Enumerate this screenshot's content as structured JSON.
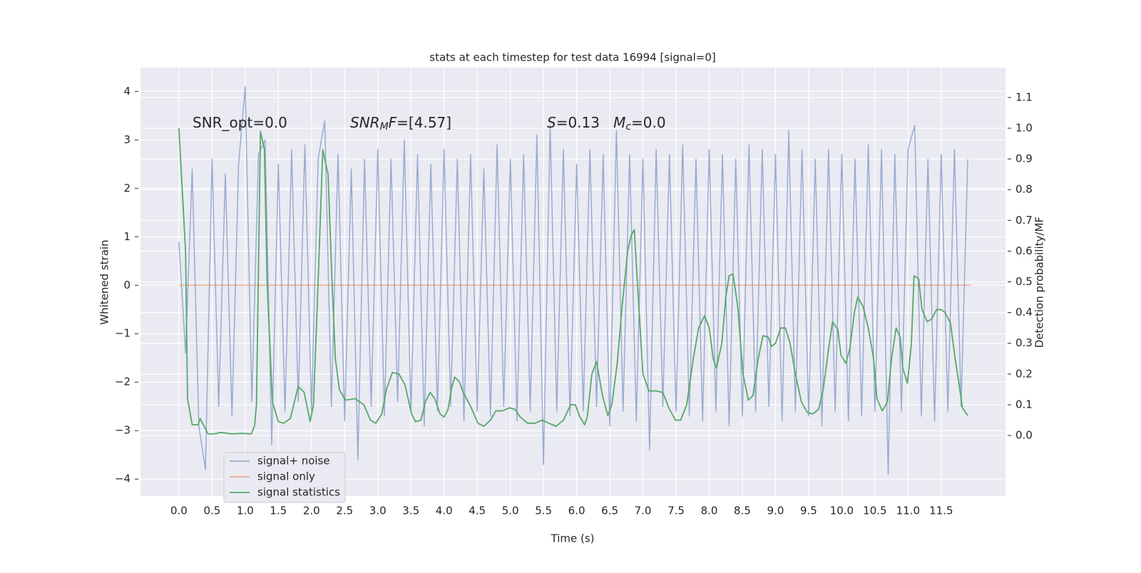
{
  "chart_data": {
    "type": "line",
    "title": "stats at each timestep for test data 16994 [signal=0]",
    "xlabel": "Time (s)",
    "ylabel": "Whitened strain",
    "y2label": "Detection probability/MF",
    "xlim": [
      -0.58,
      12.47
    ],
    "ylim": [
      -4.35,
      4.49
    ],
    "y2lim": [
      -0.197,
      1.197
    ],
    "grid": true,
    "legend": "lower left",
    "xticks": [
      {
        "value": 0,
        "label": "0.0"
      },
      {
        "value": 0.5,
        "label": "0.5"
      },
      {
        "value": 1,
        "label": "1.0"
      },
      {
        "value": 1.5,
        "label": "1.5"
      },
      {
        "value": 2,
        "label": "2.0"
      },
      {
        "value": 2.5,
        "label": "2.5"
      },
      {
        "value": 3,
        "label": "3.0"
      },
      {
        "value": 3.5,
        "label": "3.5"
      },
      {
        "value": 4,
        "label": "4.0"
      },
      {
        "value": 4.5,
        "label": "4.5"
      },
      {
        "value": 5,
        "label": "5.0"
      },
      {
        "value": 5.5,
        "label": "5.5"
      },
      {
        "value": 6,
        "label": "6.0"
      },
      {
        "value": 6.5,
        "label": "6.5"
      },
      {
        "value": 7,
        "label": "7.0"
      },
      {
        "value": 7.5,
        "label": "7.5"
      },
      {
        "value": 8,
        "label": "8.0"
      },
      {
        "value": 8.5,
        "label": "8.5"
      },
      {
        "value": 9,
        "label": "9.0"
      },
      {
        "value": 9.5,
        "label": "9.5"
      },
      {
        "value": 10,
        "label": "10.0"
      },
      {
        "value": 10.5,
        "label": "10.5"
      },
      {
        "value": 11,
        "label": "11.0"
      },
      {
        "value": 11.5,
        "label": "11.5"
      }
    ],
    "yticks": [
      {
        "value": -4,
        "label": "−4"
      },
      {
        "value": -3,
        "label": "−3"
      },
      {
        "value": -2,
        "label": "−2"
      },
      {
        "value": -1,
        "label": "−1"
      },
      0,
      1,
      2,
      3,
      4
    ],
    "y2ticks": [
      {
        "value": 0,
        "label": "0.0"
      },
      {
        "value": 0.1,
        "label": "0.1"
      },
      {
        "value": 0.2,
        "label": "0.2"
      },
      {
        "value": 0.3,
        "label": "0.3"
      },
      {
        "value": 0.4,
        "label": "0.4"
      },
      {
        "value": 0.5,
        "label": "0.5"
      },
      {
        "value": 0.6,
        "label": "0.6"
      },
      {
        "value": 0.7,
        "label": "0.7"
      },
      {
        "value": 0.8,
        "label": "0.8"
      },
      {
        "value": 0.9,
        "label": "0.9"
      },
      {
        "value": 1,
        "label": "1.0"
      },
      {
        "value": 1.1,
        "label": "1.1"
      }
    ],
    "annotations": [
      [
        {
          "text": "SNR_opt=0.0"
        }
      ],
      [
        {
          "text": "SNR",
          "italic": true
        },
        {
          "text": "M",
          "italic": true,
          "sub": true
        },
        {
          "text": "F",
          "italic": true
        },
        {
          "text": "=[4.57]"
        }
      ],
      [
        {
          "text": "S",
          "italic": true
        },
        {
          "text": "=0.13   "
        },
        {
          "text": "M",
          "italic": true
        },
        {
          "text": "c",
          "italic": true,
          "sub": true
        },
        {
          "text": "=0.0"
        }
      ]
    ],
    "series": [
      {
        "name": "signal+ noise",
        "color": "#99abd2",
        "x": [
          0.0,
          0.1,
          0.2,
          0.3,
          0.4,
          0.5,
          0.6,
          0.7,
          0.8,
          0.9,
          1.0,
          1.1,
          1.2,
          1.3,
          1.4,
          1.5,
          1.6,
          1.7,
          1.8,
          1.9,
          2.0,
          2.1,
          2.2,
          2.3,
          2.4,
          2.5,
          2.6,
          2.7,
          2.8,
          2.9,
          3.0,
          3.1,
          3.2,
          3.3,
          3.4,
          3.5,
          3.6,
          3.7,
          3.8,
          3.9,
          4.0,
          4.1,
          4.2,
          4.3,
          4.4,
          4.5,
          4.6,
          4.7,
          4.8,
          4.9,
          5.0,
          5.1,
          5.2,
          5.3,
          5.4,
          5.5,
          5.6,
          5.7,
          5.8,
          5.9,
          6.0,
          6.1,
          6.2,
          6.3,
          6.4,
          6.5,
          6.6,
          6.7,
          6.8,
          6.9,
          7.0,
          7.1,
          7.2,
          7.3,
          7.4,
          7.5,
          7.6,
          7.7,
          7.8,
          7.9,
          8.0,
          8.1,
          8.2,
          8.3,
          8.4,
          8.5,
          8.6,
          8.7,
          8.8,
          8.9,
          9.0,
          9.1,
          9.2,
          9.3,
          9.4,
          9.5,
          9.6,
          9.7,
          9.8,
          9.9,
          10.0,
          10.1,
          10.2,
          10.3,
          10.4,
          10.5,
          10.6,
          10.7,
          10.8,
          10.9,
          11.0,
          11.1,
          11.2,
          11.3,
          11.4,
          11.5,
          11.6,
          11.7,
          11.8,
          11.9
        ],
        "values": [
          0.9,
          -1.4,
          2.4,
          -2.9,
          -3.8,
          2.6,
          -2.5,
          2.3,
          -2.7,
          2.5,
          4.1,
          -2.4,
          2.7,
          3.0,
          -3.3,
          2.5,
          -2.6,
          2.8,
          -2.4,
          2.9,
          -2.6,
          2.6,
          3.4,
          -2.5,
          2.7,
          -2.8,
          2.4,
          -3.6,
          2.6,
          -2.5,
          2.8,
          -2.7,
          2.6,
          -2.4,
          3.0,
          -2.6,
          2.7,
          -2.9,
          2.5,
          -2.6,
          2.8,
          -2.5,
          2.6,
          -2.8,
          2.7,
          -2.6,
          2.4,
          -2.7,
          2.9,
          -2.5,
          2.6,
          -2.8,
          2.7,
          -2.6,
          3.1,
          -3.7,
          3.3,
          -2.6,
          2.8,
          -2.7,
          2.5,
          -2.6,
          2.8,
          -2.5,
          2.7,
          -2.9,
          3.2,
          -2.6,
          2.7,
          -2.8,
          2.6,
          -3.4,
          2.8,
          -2.5,
          2.7,
          -2.6,
          2.9,
          -2.7,
          2.6,
          -2.8,
          2.8,
          -2.6,
          2.7,
          -2.9,
          2.6,
          -2.7,
          2.9,
          -2.6,
          2.8,
          -2.5,
          2.7,
          -2.8,
          3.2,
          -2.6,
          2.8,
          -2.7,
          2.6,
          -2.9,
          2.8,
          -2.6,
          2.7,
          -2.8,
          2.6,
          -2.7,
          2.9,
          -2.6,
          2.8,
          -3.9,
          2.7,
          -2.6,
          2.8,
          3.3,
          -2.7,
          2.6,
          -2.8,
          2.7,
          -2.6,
          2.8,
          -2.5,
          2.6
        ]
      },
      {
        "name": "signal only",
        "color": "#dd8452",
        "x": [
          0.0,
          11.95
        ],
        "values": [
          0,
          0
        ]
      },
      {
        "name": "signal statistics",
        "color": "#55a868",
        "axis": "y2",
        "x": [
          0,
          0.1,
          0.13,
          0.2,
          0.29,
          0.32,
          0.44,
          0.53,
          0.63,
          0.8,
          0.96,
          1.09,
          1.14,
          1.17,
          1.23,
          1.29,
          1.33,
          1.41,
          1.5,
          1.58,
          1.68,
          1.8,
          1.89,
          1.98,
          2.03,
          2.1,
          2.17,
          2.25,
          2.31,
          2.36,
          2.42,
          2.51,
          2.66,
          2.79,
          2.89,
          2.97,
          3.06,
          3.13,
          3.22,
          3.32,
          3.41,
          3.51,
          3.57,
          3.65,
          3.72,
          3.79,
          3.86,
          3.94,
          4.0,
          4.06,
          4.11,
          4.16,
          4.23,
          4.29,
          4.4,
          4.51,
          4.6,
          4.7,
          4.78,
          4.88,
          4.99,
          5.07,
          5.15,
          5.26,
          5.37,
          5.48,
          5.58,
          5.69,
          5.8,
          5.91,
          5.98,
          6.05,
          6.12,
          6.16,
          6.23,
          6.3,
          6.39,
          6.47,
          6.53,
          6.61,
          6.69,
          6.77,
          6.82,
          6.87,
          6.93,
          7.0,
          7.09,
          7.2,
          7.3,
          7.39,
          7.49,
          7.57,
          7.66,
          7.76,
          7.84,
          7.93,
          8.0,
          8.06,
          8.11,
          8.19,
          8.25,
          8.3,
          8.36,
          8.43,
          8.51,
          8.59,
          8.66,
          8.74,
          8.81,
          8.89,
          8.94,
          9.0,
          9.08,
          9.15,
          9.22,
          9.3,
          9.39,
          9.48,
          9.56,
          9.65,
          9.72,
          9.8,
          9.86,
          9.94,
          9.99,
          10.06,
          10.12,
          10.19,
          10.24,
          10.32,
          10.4,
          10.48,
          10.53,
          10.61,
          10.69,
          10.75,
          10.82,
          10.88,
          10.92,
          10.99,
          11.05,
          11.09,
          11.16,
          11.21,
          11.29,
          11.36,
          11.43,
          11.5,
          11.56,
          11.64,
          11.71,
          11.76,
          11.82,
          11.9
        ],
        "values": [
          1.0,
          0.6,
          0.12,
          0.035,
          0.035,
          0.055,
          0.005,
          0.005,
          0.01,
          0.005,
          0.007,
          0.005,
          0.03,
          0.1,
          0.99,
          0.93,
          0.5,
          0.11,
          0.045,
          0.04,
          0.055,
          0.16,
          0.14,
          0.045,
          0.1,
          0.5,
          0.93,
          0.85,
          0.5,
          0.25,
          0.15,
          0.115,
          0.12,
          0.1,
          0.05,
          0.04,
          0.07,
          0.15,
          0.205,
          0.2,
          0.165,
          0.07,
          0.045,
          0.05,
          0.11,
          0.14,
          0.12,
          0.07,
          0.06,
          0.085,
          0.15,
          0.19,
          0.175,
          0.14,
          0.095,
          0.04,
          0.03,
          0.05,
          0.08,
          0.08,
          0.09,
          0.085,
          0.06,
          0.04,
          0.04,
          0.05,
          0.04,
          0.03,
          0.05,
          0.1,
          0.1,
          0.06,
          0.035,
          0.06,
          0.2,
          0.24,
          0.13,
          0.065,
          0.1,
          0.23,
          0.43,
          0.6,
          0.65,
          0.67,
          0.45,
          0.2,
          0.145,
          0.145,
          0.14,
          0.09,
          0.05,
          0.05,
          0.1,
          0.25,
          0.35,
          0.39,
          0.35,
          0.25,
          0.22,
          0.3,
          0.45,
          0.52,
          0.525,
          0.42,
          0.2,
          0.115,
          0.13,
          0.25,
          0.325,
          0.32,
          0.29,
          0.3,
          0.35,
          0.35,
          0.3,
          0.2,
          0.11,
          0.075,
          0.07,
          0.085,
          0.15,
          0.28,
          0.37,
          0.345,
          0.26,
          0.235,
          0.28,
          0.4,
          0.45,
          0.42,
          0.35,
          0.25,
          0.12,
          0.08,
          0.11,
          0.25,
          0.35,
          0.32,
          0.22,
          0.17,
          0.3,
          0.52,
          0.51,
          0.41,
          0.37,
          0.38,
          0.41,
          0.41,
          0.4,
          0.365,
          0.25,
          0.18,
          0.09,
          0.065
        ]
      }
    ]
  }
}
